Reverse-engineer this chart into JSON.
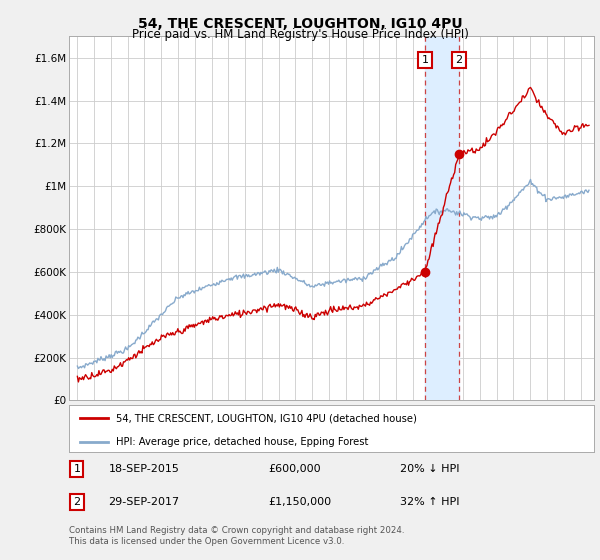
{
  "title": "54, THE CRESCENT, LOUGHTON, IG10 4PU",
  "subtitle": "Price paid vs. HM Land Registry's House Price Index (HPI)",
  "property_label": "54, THE CRESCENT, LOUGHTON, IG10 4PU (detached house)",
  "hpi_label": "HPI: Average price, detached house, Epping Forest",
  "property_color": "#cc0000",
  "hpi_color": "#88aacc",
  "highlight_color": "#ddeeff",
  "highlight_border": "#cc4444",
  "transaction1_date": "18-SEP-2015",
  "transaction1_price": "£600,000",
  "transaction1_hpi": "20% ↓ HPI",
  "transaction1_year": 2015.72,
  "transaction1_value": 600000,
  "transaction2_date": "29-SEP-2017",
  "transaction2_price": "£1,150,000",
  "transaction2_hpi": "32% ↑ HPI",
  "transaction2_year": 2017.75,
  "transaction2_value": 1150000,
  "ylim": [
    0,
    1700000
  ],
  "yticks": [
    0,
    200000,
    400000,
    600000,
    800000,
    1000000,
    1200000,
    1400000,
    1600000
  ],
  "ytick_labels": [
    "£0",
    "£200K",
    "£400K",
    "£600K",
    "£800K",
    "£1M",
    "£1.2M",
    "£1.4M",
    "£1.6M"
  ],
  "footer": "Contains HM Land Registry data © Crown copyright and database right 2024.\nThis data is licensed under the Open Government Licence v3.0.",
  "background_color": "#f0f0f0",
  "plot_bg_color": "#ffffff",
  "xmin": 1994.5,
  "xmax": 2025.8
}
